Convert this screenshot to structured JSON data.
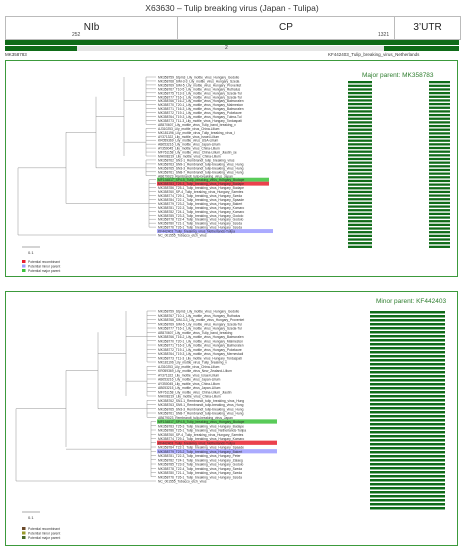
{
  "title": "X63630 – Tulip breaking virus (Japan - Tulipa)",
  "regions": [
    "NIb",
    "CP",
    "3’UTR"
  ],
  "positions": {
    "start": "252",
    "end": "1321"
  },
  "seq_bar": {
    "segment_label": "2"
  },
  "reference_labels": {
    "left": "MK358783",
    "right": "KF442403_Tulip_breaking_virus_Netherlands"
  },
  "colors": {
    "green_border": "#3c9a3c",
    "dark_green": "#0f6b18",
    "highlight_red": "#e8202e",
    "highlight_green": "#3cc23c",
    "highlight_blue": "#9c9cff"
  },
  "panel1": {
    "parent_label": "Major parent: MK358783",
    "scale": "0.1",
    "legend": [
      "Potential recombinant",
      "Potential minor parent",
      "Potential major parent"
    ],
    "leaves": [
      "MK358759_Stpm3_Lily_mottle_virus_Hungary_Godollo",
      "MK358768_SIM-3-3_Lily_mottle_virus_Hungary_Szeda",
      "MK358769_SIM-5_Lily_mottle_virus_Hungary_Proventet",
      "MK358767_T10-5_Lily_mottle_virus_Hungary_Ruthatus",
      "MK358775_T13-3_Lily_mottle_virus_Hungary_Szeda-Tul",
      "MK358777_T16-1_Lily_mottle_virus_Hungary_Szeda-Tul",
      "MK358766_T16-2_Lily_mottle_virus_Hungary_Balmoralen",
      "MK358770_T20-1_Lily_mottle_virus_Hungary_Malmeston",
      "MK358771_T16-3_Lily_mottle_virus_Hungary_Balmoralen",
      "MK358772_T19-1_Lily_mottle_virus_Hungary_Pokelaure",
      "MK358764_T19-3_Lily_mottle_virus_Hungary_Tulma-Tul",
      "MK358773_T11-3_Lily_mottle_virus_Hungary_Tordaspati",
      "AB570607_Lily_mottle_virus_Tulip_band_breaking_v",
      "AJ310253_Lily_mottle_virus_China-Lilium",
      "MK181196_Lily_mottle_virus_Tulip_breaking_virus_I",
      "AY371322_Lily_mottle_virus_Israel-Lilium",
      "KR059369_Lily_mottle_virus_USA-Lilium",
      "AB053216_Lily_mottle_virus_Japan-Lilium",
      "AY350045_Lily_mottle_virus_China-Lilium",
      "MF761158_Lily_mottle_virus_China-Lilium_Jiaotin_se",
      "MH008219_Lily_mottle_virus_China-Lilium",
      "MK358762_SN1-1_Rembrandt_tulip_breaking_virus",
      "MK358763_SN9-1_Rembrandt_tulip-breaking_virus_Hung",
      "MK358765_SN3-3_Rembrandt_tulip-breaking_virus_Hung",
      "MK358761_SN8-7_Rembrandt_tulip-breaking_virus_Hung",
      "AB679023_Rembrandt_tulip-breaking_virus_Japan",
      "MF134817_SP4-5_Tulip_breaking_virus_Hungary_Budape",
      "MK358783_T25-3_Tulip_breaking_virus_Hungary_Budape",
      "MK358786_T25-1_Tulip_breaking_virus_Hungary_Budape",
      "MK358760_SP-4_Tulip_breaking_virus_Hungary_Szentes",
      "MK358774_T29-1_Tulip_breaking_virus_Hungary_Szeda",
      "MK358784_T22-1_Tulip_breaking_virus_Hungary_Spaade",
      "MK358779_T23-2_Tulip_breaking_virus_Hungary_Bakert",
      "MK358781_T22-3_Tulip_breaking_virus_Hungary_Komaro",
      "MK358782_T24-1_Tulip_breaking_virus_Hungary_Komaro",
      "MK358785_T23-3_Tulip_breaking_virus_Hungary_Godolo",
      "MK358778_T22-4_Tulip_breaking_virus_Hungary_Godolo",
      "MK358780_T21-1_Tulip_breaking_virus_Hungary_Szeda",
      "MK358776_T26-1_Tulip_breaking_virus_Hungary_Szeda",
      "KF442403_Tulip_breaking_virus_Netherlands-Tulipa",
      "NC_001555_Tobacco_etch_virus"
    ]
  },
  "panel2": {
    "parent_label": "Minor parent: KF442403",
    "scale": "0.1",
    "legend": [
      "Potential recombinant",
      "Potential minor parent",
      "Potential major parent"
    ],
    "leaves": [
      "MK358759_Stpm3_Lily_mottle_virus_Hungary_Godollo",
      "MK358767_T10-1_Lily_mottle_virus_Hungary_Ruthatus",
      "MK358768_SIM-3-3_Lily_mottle_virus_Hungary_Proventet",
      "MK358769_SIM-5_Lily_mottle_virus_Hungary_Szeda-Tul",
      "MK358777_T16-1_Lily_mottle_virus_Hungary_Szeda-Tul",
      "AB570607_Lily_mottle_virus_Tulip_band_breaking",
      "MK358766_T16-2_Lily_mottle_virus_Hungary_Balmoralen",
      "MK358770_T20-1_Lily_mottle_virus_Hungary_Malmeston",
      "MK358771_T16-3_Lily_mottle_virus_Hungary_Balmoralen",
      "MK358772_T19-1_Lily_mottle_virus_Hungary_Pokelaure",
      "MK358764_T19-3_Lily_mottle_virus_Hungary_Mernestudi",
      "MK358773_T11-3_Lily_mottle_virus_Hungary_Tordaspati",
      "MK181196_Lily_mottle_virus_Tulip_breaking_v",
      "AJ310253_Lily_mottle_virus_China-Lilium",
      "KR059369_Lily_mottle_virus_New_Zealand-Lilium",
      "AY371322_Lily_mottle_virus_Israel-Lilium",
      "AB053216_Lily_mottle_virus_Japan-Lilium",
      "AY350045_Lily_mottle_virus_China-Lilium",
      "AB053215_Lily_mottle_virus_Japan-Lilium",
      "MF761158_Lily_mottle_virus_China-Lilium_Jiaotin",
      "MH008219_Lily_mottle_virus_China-Lilium",
      "MK358762_SN1-1_Rembrandt_tulip_breaking_virus_Hung",
      "MK358763_SN9-1_Rembrandt_tulip-breaking_virus_Hung",
      "MK358765_SN3-3_Rembrandt_tulip-breaking_virus_Hung",
      "MK358761_SN8-7_Rembrandt_tulip-breaking_virus_Hung",
      "AB679023_Rembrandt_tulip-breaking_virus_Japan",
      "MF134817_SP4-5_Tulip_breaking_virus_Hungary_Budape",
      "MK358783_T25-3_Tulip_breaking_virus_Hungary_Budape",
      "MK358786_T25-1_Tulip_breaking_virus_Netherlands-Tulipa",
      "MK358760_SP-4_Tulip_breaking_virus_Hungary_Szentes",
      "MK358774_T29-1_Tulip_breaking_virus_Hungary_Komaro",
      "KF442403_Tulip_breaking_virus_Netherlands-Tulipa",
      "MK358784_T22-1_Tulip_breaking_virus_Hungary_Spaade",
      "MK358779_T23-2_Tulip_breaking_virus_Hungary_Bakert",
      "MK358781_T22-3_Tulip_breaking_virus_Hungary_Peter",
      "MK358782_T24-1_Tulip_breaking_virus_Hungary_Zalaeg",
      "MK358785_T23-3_Tulip_breaking_virus_Hungary_Godolo",
      "MK358778_T22-4_Tulip_breaking_virus_Hungary_Szeda",
      "MK358780_T21-1_Tulip_breaking_virus_Hungary_Szeda",
      "MK358776_T26-1_Tulip_breaking_virus_Hungary_Szeda",
      "NC_001555_Tobacco_etch_virus"
    ]
  }
}
